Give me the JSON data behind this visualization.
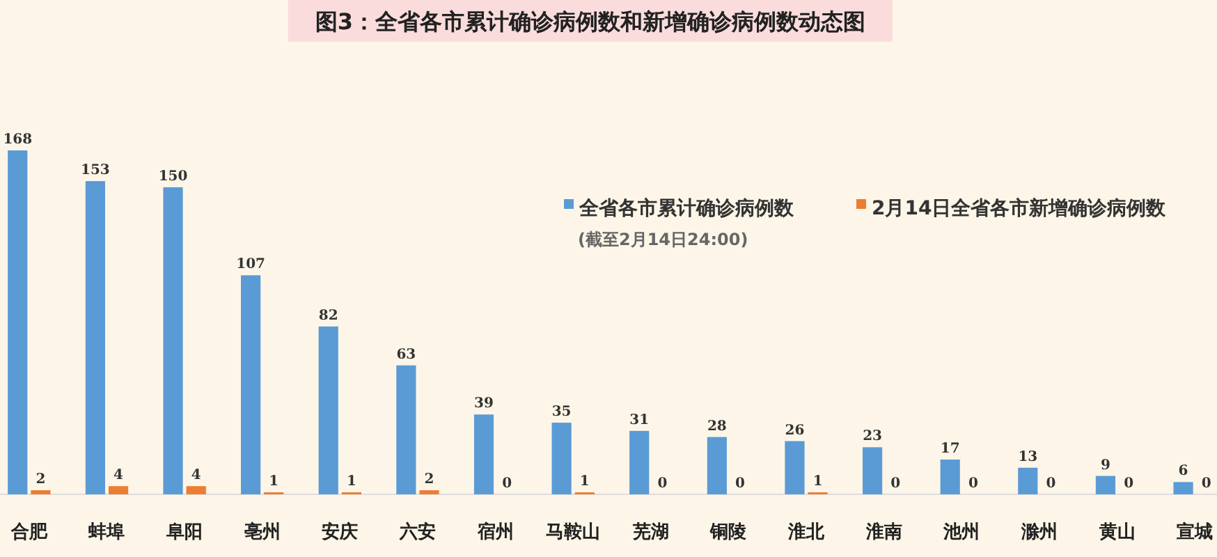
{
  "chart_data": {
    "type": "bar",
    "title": "图3：全省各市累计确诊病例数和新增确诊病例数动态图",
    "subtitle": "(截至2月14日24:00)",
    "categories": [
      "合肥",
      "蚌埠",
      "阜阳",
      "亳州",
      "安庆",
      "六安",
      "宿州",
      "马鞍山",
      "芜湖",
      "铜陵",
      "淮北",
      "淮南",
      "池州",
      "滁州",
      "黄山",
      "宣城"
    ],
    "series": [
      {
        "name": "全省各市累计确诊病例数",
        "color": "#5b9bd5",
        "values": [
          168,
          153,
          150,
          107,
          82,
          63,
          39,
          35,
          31,
          28,
          26,
          23,
          17,
          13,
          9,
          6
        ]
      },
      {
        "name": "2月14日全省各市新增确诊病例数",
        "color": "#ed7d31",
        "values": [
          2,
          4,
          4,
          1,
          1,
          2,
          0,
          1,
          0,
          0,
          1,
          0,
          0,
          0,
          0,
          0
        ]
      }
    ],
    "data_labels": true,
    "legend": "top right"
  }
}
